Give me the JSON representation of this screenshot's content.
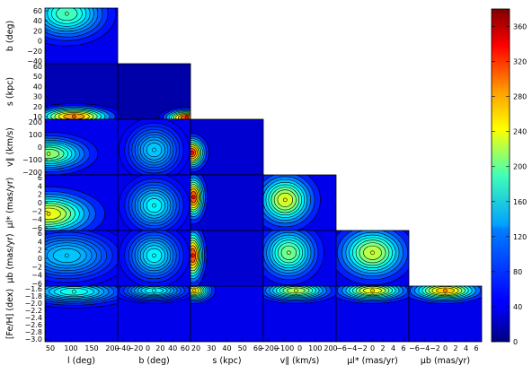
{
  "chart_data": {
    "type": "heatmap",
    "layout": "corner",
    "colormap": "jet",
    "variables": [
      {
        "label": "l (deg)",
        "x_ticks": [
          "50",
          "100",
          "150",
          "200"
        ]
      },
      {
        "label": "b (deg)",
        "y_ticks": [
          "60",
          "40",
          "20",
          "0",
          "−20",
          "−40"
        ],
        "x_ticks": [
          "−40",
          "−20",
          "0",
          "20",
          "40",
          "60"
        ]
      },
      {
        "label": "s (kpc)",
        "y_ticks": [
          "60",
          "50",
          "40",
          "30",
          "20",
          "10"
        ],
        "x_ticks": [
          "20",
          "30",
          "40",
          "50",
          "60"
        ]
      },
      {
        "label": "v∥ (km/s)",
        "y_ticks": [
          "200",
          "100",
          "0",
          "−100",
          "−200"
        ],
        "x_ticks": [
          "−200",
          "−100",
          "0",
          "100",
          "200"
        ]
      },
      {
        "label": "μl* (mas/yr)",
        "y_ticks": [
          "6",
          "4",
          "2",
          "0",
          "−2",
          "−4",
          "−6"
        ],
        "x_ticks": [
          "−6",
          "−4",
          "−2",
          "0",
          "2",
          "4",
          "6"
        ]
      },
      {
        "label": "μb (mas/yr)",
        "y_ticks": [
          "6",
          "4",
          "2",
          "0",
          "−2",
          "−4",
          "−6"
        ],
        "x_ticks": [
          "−6",
          "−4",
          "−2",
          "0",
          "2",
          "4",
          "6"
        ]
      },
      {
        "label": "[Fe/H] (dex)",
        "y_ticks": [
          "−1.6",
          "−1.8",
          "−2.0",
          "−2.2",
          "−2.4",
          "−2.6",
          "−2.8",
          "−3.0"
        ]
      }
    ],
    "ylabels": [
      "b (deg)",
      "s (kpc)",
      "v∥ (km/s)",
      "μl* (mas/yr)",
      "μb (mas/yr)",
      "[Fe/H] (dex)"
    ],
    "xlabels": [
      "l (deg)",
      "b (deg)",
      "s (kpc)",
      "v∥ (km/s)",
      "μl* (mas/yr)",
      "μb (mas/yr)"
    ],
    "colorbar": {
      "ticks": [
        "0",
        "40",
        "80",
        "120",
        "160",
        "200",
        "240",
        "280",
        "320",
        "360"
      ],
      "range": [
        0,
        380
      ]
    },
    "panels": [
      {
        "row": 0,
        "col": 0,
        "peak": [
          0.3,
          0.1
        ],
        "sigma": [
          0.35,
          0.3
        ],
        "max": 180,
        "base": 40
      },
      {
        "row": 1,
        "col": 0,
        "peak": [
          0.4,
          0.95
        ],
        "sigma": [
          0.35,
          0.12
        ],
        "max": 300,
        "base": 20
      },
      {
        "row": 1,
        "col": 1,
        "peak": [
          0.95,
          0.97
        ],
        "sigma": [
          0.2,
          0.1
        ],
        "max": 330,
        "base": 15
      },
      {
        "row": 2,
        "col": 0,
        "peak": [
          0.05,
          0.62
        ],
        "sigma": [
          0.35,
          0.2
        ],
        "max": 210,
        "base": 40
      },
      {
        "row": 2,
        "col": 1,
        "peak": [
          0.5,
          0.55
        ],
        "sigma": [
          0.25,
          0.3
        ],
        "max": 130,
        "base": 40
      },
      {
        "row": 2,
        "col": 2,
        "peak": [
          0.02,
          0.6
        ],
        "sigma": [
          0.12,
          0.18
        ],
        "max": 330,
        "base": 30
      },
      {
        "row": 3,
        "col": 0,
        "peak": [
          0.05,
          0.7
        ],
        "sigma": [
          0.4,
          0.25
        ],
        "max": 250,
        "base": 40
      },
      {
        "row": 3,
        "col": 1,
        "peak": [
          0.5,
          0.55
        ],
        "sigma": [
          0.25,
          0.3
        ],
        "max": 150,
        "base": 40
      },
      {
        "row": 3,
        "col": 2,
        "peak": [
          0.04,
          0.4
        ],
        "sigma": [
          0.1,
          0.25
        ],
        "max": 330,
        "base": 30
      },
      {
        "row": 3,
        "col": 3,
        "peak": [
          0.3,
          0.45
        ],
        "sigma": [
          0.25,
          0.3
        ],
        "max": 240,
        "base": 40
      },
      {
        "row": 4,
        "col": 0,
        "peak": [
          0.3,
          0.45
        ],
        "sigma": [
          0.45,
          0.3
        ],
        "max": 130,
        "base": 40
      },
      {
        "row": 4,
        "col": 1,
        "peak": [
          0.5,
          0.45
        ],
        "sigma": [
          0.25,
          0.3
        ],
        "max": 150,
        "base": 40
      },
      {
        "row": 4,
        "col": 2,
        "peak": [
          0.03,
          0.45
        ],
        "sigma": [
          0.1,
          0.3
        ],
        "max": 330,
        "base": 30
      },
      {
        "row": 4,
        "col": 3,
        "peak": [
          0.35,
          0.4
        ],
        "sigma": [
          0.25,
          0.3
        ],
        "max": 200,
        "base": 40
      },
      {
        "row": 4,
        "col": 4,
        "peak": [
          0.5,
          0.4
        ],
        "sigma": [
          0.3,
          0.3
        ],
        "max": 230,
        "base": 40
      },
      {
        "row": 5,
        "col": 0,
        "peak": [
          0.4,
          0.1
        ],
        "sigma": [
          0.45,
          0.15
        ],
        "max": 160,
        "base": 40
      },
      {
        "row": 5,
        "col": 1,
        "peak": [
          0.5,
          0.08
        ],
        "sigma": [
          0.3,
          0.12
        ],
        "max": 150,
        "base": 40
      },
      {
        "row": 5,
        "col": 2,
        "peak": [
          0.05,
          0.08
        ],
        "sigma": [
          0.15,
          0.12
        ],
        "max": 260,
        "base": 40
      },
      {
        "row": 5,
        "col": 3,
        "peak": [
          0.45,
          0.08
        ],
        "sigma": [
          0.3,
          0.12
        ],
        "max": 220,
        "base": 40
      },
      {
        "row": 5,
        "col": 4,
        "peak": [
          0.5,
          0.08
        ],
        "sigma": [
          0.3,
          0.12
        ],
        "max": 250,
        "base": 40
      },
      {
        "row": 5,
        "col": 5,
        "peak": [
          0.5,
          0.08
        ],
        "sigma": [
          0.3,
          0.12
        ],
        "max": 280,
        "base": 40
      }
    ]
  }
}
